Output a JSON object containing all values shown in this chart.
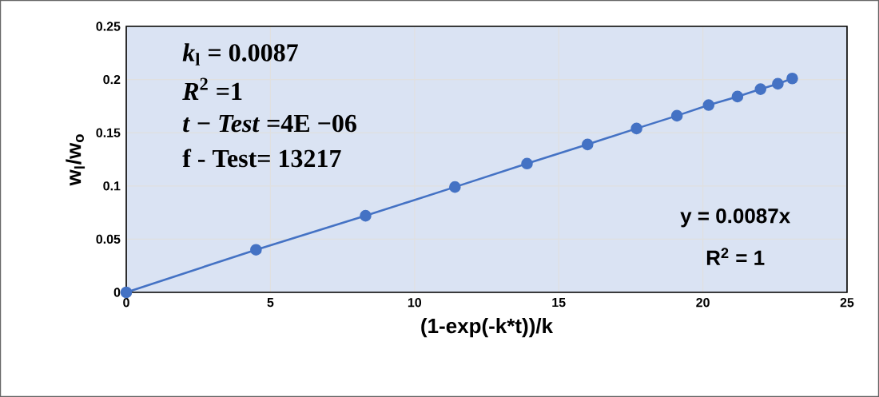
{
  "chart_data": {
    "type": "line",
    "xlabel": "(1-exp(-k*t))/k",
    "ylabel": "w$_{l}$/w$_{o}$",
    "x": [
      0,
      4.5,
      8.3,
      11.4,
      13.9,
      16.0,
      17.7,
      19.1,
      20.2,
      21.2,
      22.0,
      22.6,
      23.1
    ],
    "series": [
      {
        "color": "#4472c4",
        "values": [
          0,
          0.04,
          0.072,
          0.099,
          0.121,
          0.139,
          0.154,
          0.166,
          0.176,
          0.184,
          0.191,
          0.196,
          0.201
        ]
      }
    ],
    "xlim": [
      0,
      25
    ],
    "xticks": [
      0,
      5,
      10,
      15,
      20,
      25
    ],
    "ylim": [
      0,
      0.25
    ],
    "yticks": [
      0,
      0.05,
      0.1,
      0.15,
      0.2,
      0.25
    ],
    "grid": true,
    "marker": "circle",
    "line_style": "solid",
    "annotations": [
      "*k*$_{l}$ = 0.0087",
      "*R*$^{2}$ =1",
      "*t* − *Test* =4E −06",
      "f - Test= 13217",
      "y = 0.0087x",
      "R$^{2}$ = 1"
    ]
  }
}
